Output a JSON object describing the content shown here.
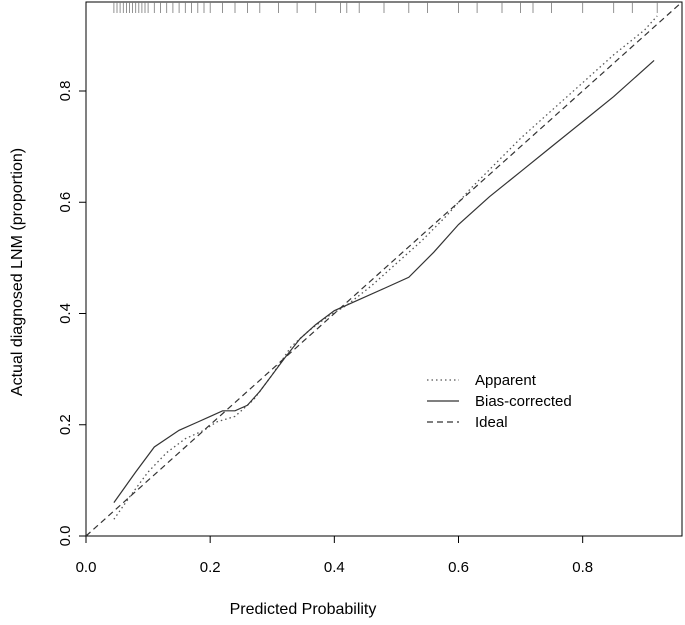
{
  "chart_data": {
    "type": "line",
    "title": "",
    "xlabel": "Predicted Probability",
    "ylabel": "Actual diagnosed LNM (proportion)",
    "xlim": [
      0,
      0.96
    ],
    "ylim": [
      0,
      0.96
    ],
    "xticks": [
      0.0,
      0.2,
      0.4,
      0.6,
      0.8
    ],
    "yticks": [
      0.0,
      0.2,
      0.4,
      0.6,
      0.8
    ],
    "xtick_labels": [
      "0.0",
      "0.2",
      "0.4",
      "0.6",
      "0.8"
    ],
    "ytick_labels": [
      "0.0",
      "0.2",
      "0.4",
      "0.6",
      "0.8"
    ],
    "grid": false,
    "legend_position": "center-right",
    "series": [
      {
        "name": "Apparent",
        "style": "dotted",
        "color": "#555555",
        "x": [
          0.045,
          0.07,
          0.1,
          0.13,
          0.16,
          0.19,
          0.21,
          0.24,
          0.27,
          0.3,
          0.33,
          0.36,
          0.39,
          0.42,
          0.46,
          0.5,
          0.54,
          0.58,
          0.62,
          0.66,
          0.7,
          0.75,
          0.8,
          0.85,
          0.9,
          0.92
        ],
        "y": [
          0.03,
          0.07,
          0.115,
          0.15,
          0.175,
          0.19,
          0.205,
          0.215,
          0.245,
          0.29,
          0.34,
          0.37,
          0.395,
          0.415,
          0.45,
          0.49,
          0.53,
          0.575,
          0.625,
          0.67,
          0.715,
          0.765,
          0.815,
          0.865,
          0.91,
          0.935
        ]
      },
      {
        "name": "Bias-corrected",
        "style": "solid",
        "color": "#333333",
        "x": [
          0.045,
          0.08,
          0.11,
          0.15,
          0.18,
          0.2,
          0.22,
          0.24,
          0.26,
          0.28,
          0.3,
          0.32,
          0.345,
          0.37,
          0.4,
          0.44,
          0.48,
          0.52,
          0.56,
          0.6,
          0.65,
          0.7,
          0.75,
          0.8,
          0.85,
          0.915
        ],
        "y": [
          0.06,
          0.115,
          0.16,
          0.19,
          0.205,
          0.215,
          0.225,
          0.225,
          0.235,
          0.26,
          0.29,
          0.32,
          0.355,
          0.38,
          0.405,
          0.425,
          0.445,
          0.465,
          0.51,
          0.56,
          0.61,
          0.655,
          0.7,
          0.745,
          0.79,
          0.855
        ]
      },
      {
        "name": "Ideal",
        "style": "dashed",
        "color": "#333333",
        "x": [
          0.0,
          0.96
        ],
        "y": [
          0.0,
          0.96
        ]
      }
    ],
    "rug_x": [
      0.045,
      0.05,
      0.055,
      0.06,
      0.065,
      0.07,
      0.075,
      0.08,
      0.085,
      0.09,
      0.095,
      0.1,
      0.11,
      0.12,
      0.13,
      0.14,
      0.15,
      0.16,
      0.17,
      0.18,
      0.19,
      0.2,
      0.22,
      0.24,
      0.26,
      0.28,
      0.31,
      0.34,
      0.37,
      0.41,
      0.42,
      0.44,
      0.48,
      0.52,
      0.55,
      0.6,
      0.63,
      0.67,
      0.7,
      0.72,
      0.75,
      0.8,
      0.85,
      0.88,
      0.92
    ]
  }
}
